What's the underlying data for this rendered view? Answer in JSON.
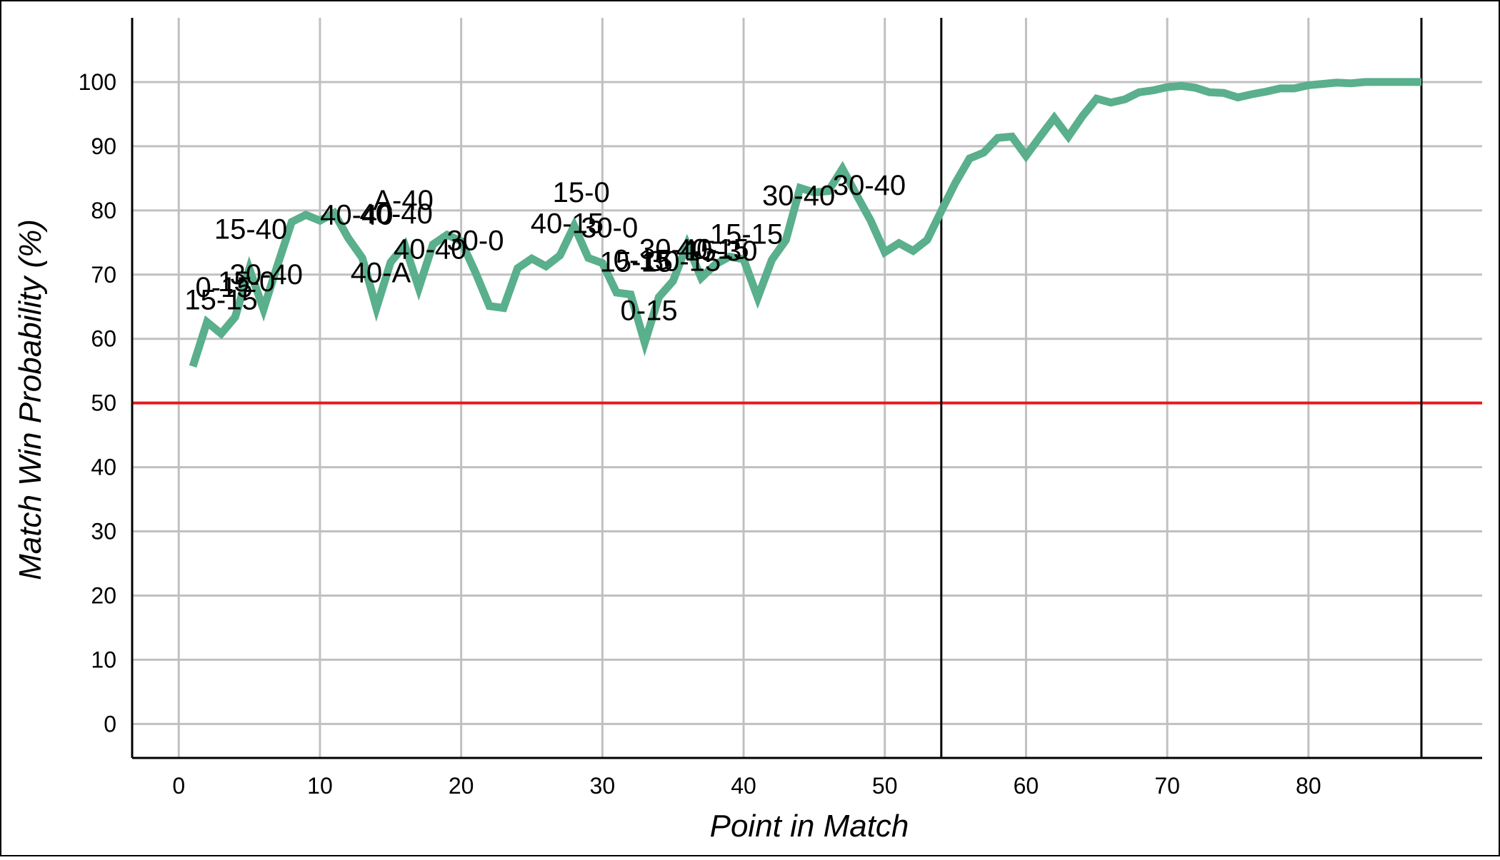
{
  "chart_data": {
    "type": "line",
    "title": "",
    "xlabel": "Point in Match",
    "ylabel": "Match Win Probability (%)",
    "xlim": [
      -3.3,
      92.3
    ],
    "ylim": [
      -5.3,
      110
    ],
    "x_ticks": [
      0,
      10,
      20,
      30,
      40,
      50,
      60,
      70,
      80
    ],
    "y_ticks": [
      0,
      10,
      20,
      30,
      40,
      50,
      60,
      70,
      80,
      90,
      100
    ],
    "grid": true,
    "grid_color": "#c0c0c0",
    "line_color": "#5aaf8c",
    "reference_line": {
      "y": 50,
      "color": "#e8191c"
    },
    "set_break_lines": [
      54,
      88
    ],
    "series": [
      {
        "x": [
          1,
          2,
          3,
          4,
          5,
          6,
          7,
          8,
          9,
          10,
          11,
          12,
          13,
          14,
          15,
          16,
          17,
          18,
          19,
          20,
          21,
          22,
          23,
          24,
          25,
          26,
          27,
          28,
          29,
          30,
          31,
          32,
          33,
          34,
          35,
          36,
          37,
          38,
          39,
          40,
          41,
          42,
          43,
          44,
          45,
          46,
          47,
          48,
          49,
          50,
          51,
          52,
          53,
          54,
          55,
          56,
          57,
          58,
          59,
          60,
          61,
          62,
          63,
          64,
          65,
          66,
          67,
          68,
          69,
          70,
          71,
          72,
          73,
          74,
          75,
          76,
          77,
          78,
          79,
          80,
          81,
          82,
          83,
          84,
          85,
          86,
          87,
          88
        ],
        "values": [
          55.7,
          62.6,
          60.8,
          63.4,
          70.9,
          64.6,
          71.5,
          78.2,
          79.3,
          78.4,
          79.6,
          75.7,
          72.6,
          64.8,
          71.9,
          74.6,
          67.9,
          74.7,
          76.2,
          75.2,
          70.4,
          65.1,
          64.8,
          71.0,
          72.5,
          71.3,
          73.0,
          77.6,
          72.6,
          71.8,
          67.2,
          66.9,
          59.4,
          66.5,
          69.0,
          74.7,
          69.5,
          71.6,
          72.8,
          72.4,
          66.4,
          72.3,
          75.4,
          83.5,
          82.8,
          83.0,
          86.5,
          82.4,
          78.4,
          73.5,
          74.9,
          73.7,
          75.4,
          79.9,
          84.3,
          88.1,
          89.0,
          91.3,
          91.5,
          88.5,
          91.5,
          94.4,
          91.5,
          94.7,
          97.4,
          96.8,
          97.3,
          98.4,
          98.7,
          99.2,
          99.4,
          99.1,
          98.4,
          98.3,
          97.6,
          98.1,
          98.5,
          99.0,
          99.0,
          99.5,
          99.7,
          99.9,
          99.8,
          100.0,
          100.0,
          100.0,
          100.0,
          100.0
        ]
      }
    ],
    "annotations": [
      {
        "text": "0-15",
        "x": 3.2,
        "y": 66.5
      },
      {
        "text": "15-0",
        "x": 4.8,
        "y": 67.4
      },
      {
        "text": "15-15",
        "x": 3.0,
        "y": 64.6
      },
      {
        "text": "30-40",
        "x": 6.2,
        "y": 68.5
      },
      {
        "text": "15-40",
        "x": 5.1,
        "y": 75.6
      },
      {
        "text": "40-40",
        "x": 12.6,
        "y": 77.8
      },
      {
        "text": "40-40",
        "x": 15.4,
        "y": 78.0
      },
      {
        "text": "A-40",
        "x": 15.9,
        "y": 80.1
      },
      {
        "text": "40-40",
        "x": 17.8,
        "y": 72.5
      },
      {
        "text": "40-A",
        "x": 14.3,
        "y": 68.8
      },
      {
        "text": "30-0",
        "x": 21.0,
        "y": 73.8
      },
      {
        "text": "40-15",
        "x": 27.5,
        "y": 76.5
      },
      {
        "text": "15-0",
        "x": 28.5,
        "y": 81.3
      },
      {
        "text": "30-0",
        "x": 30.5,
        "y": 75.8
      },
      {
        "text": "0-15",
        "x": 32.8,
        "y": 70.8
      },
      {
        "text": "15-15",
        "x": 32.4,
        "y": 70.5
      },
      {
        "text": "30-40",
        "x": 35.2,
        "y": 72.5
      },
      {
        "text": "40-15",
        "x": 37.8,
        "y": 72.5
      },
      {
        "text": "30-15",
        "x": 35.8,
        "y": 70.6
      },
      {
        "text": "15-30",
        "x": 38.4,
        "y": 72.2
      },
      {
        "text": "15-15",
        "x": 40.2,
        "y": 74.8
      },
      {
        "text": "30-40",
        "x": 43.9,
        "y": 80.8
      },
      {
        "text": "30-40",
        "x": 48.9,
        "y": 82.4
      },
      {
        "text": "0-15",
        "x": 33.3,
        "y": 62.9
      }
    ]
  }
}
